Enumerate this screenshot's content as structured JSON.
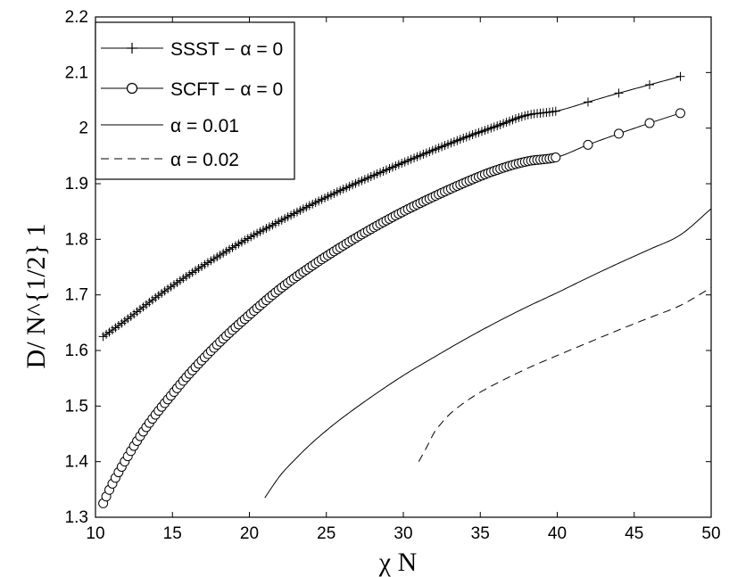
{
  "chart_data": {
    "type": "line",
    "xlabel": "χ N",
    "ylabel": "D/ N^{1/2} 1",
    "xlim": [
      10,
      50
    ],
    "ylim": [
      1.3,
      2.2
    ],
    "xticks": [
      10,
      15,
      20,
      25,
      30,
      35,
      40,
      45,
      50
    ],
    "yticks": [
      1.3,
      1.4,
      1.5,
      1.6,
      1.7,
      1.8,
      1.9,
      2.0,
      2.1,
      2.2
    ],
    "xtick_labels": [
      "10",
      "15",
      "20",
      "25",
      "30",
      "35",
      "40",
      "45",
      "50"
    ],
    "ytick_labels": [
      "1.3",
      "1.4",
      "1.5",
      "1.6",
      "1.7",
      "1.8",
      "1.9",
      "2",
      "2.1",
      "2.2"
    ],
    "grid": false,
    "legend_position": "top-left",
    "series": [
      {
        "name": "SSST − α = 0",
        "marker": "plus",
        "line": "solid",
        "dense_x_range": [
          10.5,
          40
        ],
        "dense_step": 0.2,
        "sparse_x": [
          42,
          44,
          46,
          48
        ],
        "x": [
          10.5,
          12,
          14,
          16,
          18,
          20,
          22,
          24,
          26,
          28,
          30,
          32,
          34,
          36,
          38,
          40,
          42,
          44,
          46,
          48
        ],
        "values": [
          1.625,
          1.655,
          1.697,
          1.735,
          1.77,
          1.803,
          1.833,
          1.862,
          1.889,
          1.914,
          1.938,
          1.961,
          1.983,
          2.003,
          2.023,
          2.031,
          2.047,
          2.063,
          2.078,
          2.093
        ]
      },
      {
        "name": "SCFT − α = 0",
        "marker": "circle",
        "line": "solid",
        "dense_x_range": [
          10.5,
          40
        ],
        "dense_step": 0.2,
        "sparse_x": [
          42,
          44,
          46,
          48
        ],
        "x": [
          10.5,
          11,
          12,
          13,
          14,
          15,
          16,
          18,
          20,
          22,
          24,
          26,
          28,
          30,
          32,
          34,
          36,
          38,
          40,
          42,
          44,
          46,
          48
        ],
        "values": [
          1.325,
          1.355,
          1.405,
          1.45,
          1.488,
          1.522,
          1.555,
          1.613,
          1.664,
          1.711,
          1.751,
          1.787,
          1.82,
          1.85,
          1.877,
          1.902,
          1.924,
          1.94,
          1.948,
          1.97,
          1.99,
          2.009,
          2.027
        ]
      },
      {
        "name": "α = 0.01",
        "marker": "none",
        "line": "solid",
        "x": [
          21,
          22,
          23,
          24,
          25,
          26,
          28,
          30,
          32,
          34,
          36,
          38,
          40,
          42,
          44,
          46,
          48,
          50
        ],
        "values": [
          1.335,
          1.375,
          1.405,
          1.432,
          1.456,
          1.478,
          1.518,
          1.555,
          1.588,
          1.62,
          1.65,
          1.678,
          1.704,
          1.731,
          1.757,
          1.782,
          1.808,
          1.855
        ]
      },
      {
        "name": "α = 0.02",
        "marker": "none",
        "line": "dashed",
        "x": [
          31,
          31.5,
          32,
          32.5,
          33,
          34,
          35,
          36,
          38,
          40,
          42,
          44,
          46,
          48,
          50
        ],
        "values": [
          1.4,
          1.425,
          1.452,
          1.47,
          1.485,
          1.507,
          1.525,
          1.54,
          1.567,
          1.591,
          1.614,
          1.637,
          1.659,
          1.681,
          1.713
        ]
      }
    ]
  }
}
